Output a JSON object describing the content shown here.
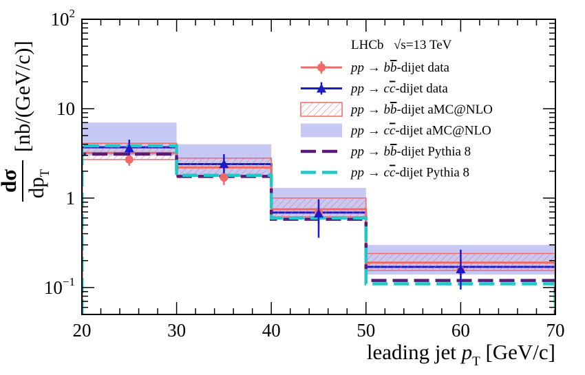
{
  "chart_data": {
    "type": "line",
    "title": "",
    "xlabel": "leading jet",
    "xlabel_var": "p",
    "xlabel_sub": "T",
    "xlabel_unit": "[GeV/c]",
    "ylabel_num": "dσ",
    "ylabel_den": "dp",
    "ylabel_den_sub": "T",
    "ylabel_unit": "[nb/(GeV/c)]",
    "xlim": [
      20,
      70
    ],
    "ylim": [
      0.05,
      100
    ],
    "yscale": "log",
    "x_ticks": [
      "20",
      "30",
      "40",
      "50",
      "60",
      "70"
    ],
    "x_tick_values": [
      20,
      30,
      40,
      50,
      60,
      70
    ],
    "y_ticks": [
      {
        "value": 100,
        "base": "10",
        "exp": "2"
      },
      {
        "value": 10,
        "base": "10",
        "exp": ""
      },
      {
        "value": 1,
        "base": "1",
        "exp": ""
      },
      {
        "value": 0.1,
        "base": "10",
        "exp": "−1"
      }
    ],
    "bins": [
      [
        20,
        30
      ],
      [
        30,
        40
      ],
      [
        40,
        50
      ],
      [
        50,
        70
      ]
    ],
    "annotation": {
      "experiment": "LHCb",
      "energy": "√s=13 TeV"
    },
    "legend_position": "top-right",
    "series": [
      {
        "name": "pp → bb-dijet data",
        "kind": "points",
        "marker": "circle",
        "color": "#f06a6a",
        "x": [
          25,
          35,
          45,
          60
        ],
        "values": [
          2.7,
          1.7,
          0.68,
          0.155
        ],
        "err_low": [
          0.4,
          0.3,
          0.22,
          0.035
        ],
        "err_high": [
          0.45,
          0.35,
          0.25,
          0.04
        ]
      },
      {
        "name": "pp → cc-dijet data",
        "kind": "points",
        "marker": "triangle",
        "color": "#1a1acc",
        "x": [
          25,
          35,
          45,
          60
        ],
        "values": [
          3.6,
          2.4,
          0.67,
          0.16
        ],
        "err_low": [
          0.6,
          0.5,
          0.31,
          0.065
        ],
        "err_high": [
          0.9,
          0.7,
          0.3,
          0.105
        ]
      },
      {
        "name": "pp → bb-dijet aMC@NLO",
        "kind": "band",
        "style": "hatched",
        "color": "#f06a6a",
        "values": [
          3.2,
          2.2,
          0.75,
          0.19
        ],
        "low": [
          2.7,
          1.75,
          0.62,
          0.155
        ],
        "high": [
          4.1,
          2.8,
          1.0,
          0.24
        ]
      },
      {
        "name": "pp → cc-dijet aMC@NLO",
        "kind": "band",
        "style": "filled",
        "color": "#c8c8f5",
        "values": [
          3.7,
          2.4,
          0.69,
          0.17
        ],
        "low": [
          3.0,
          1.75,
          0.6,
          0.14
        ],
        "high": [
          7.0,
          4.0,
          1.3,
          0.3
        ]
      },
      {
        "name": "pp → bb-dijet Pythia 8",
        "kind": "step",
        "style": "dashed",
        "color": "#5a1a78",
        "values": [
          3.1,
          1.75,
          0.58,
          0.12
        ]
      },
      {
        "name": "pp → cc-dijet Pythia 8",
        "kind": "step",
        "style": "dashed",
        "color": "#22c8c8",
        "values": [
          3.85,
          1.8,
          0.6,
          0.11
        ]
      }
    ]
  }
}
